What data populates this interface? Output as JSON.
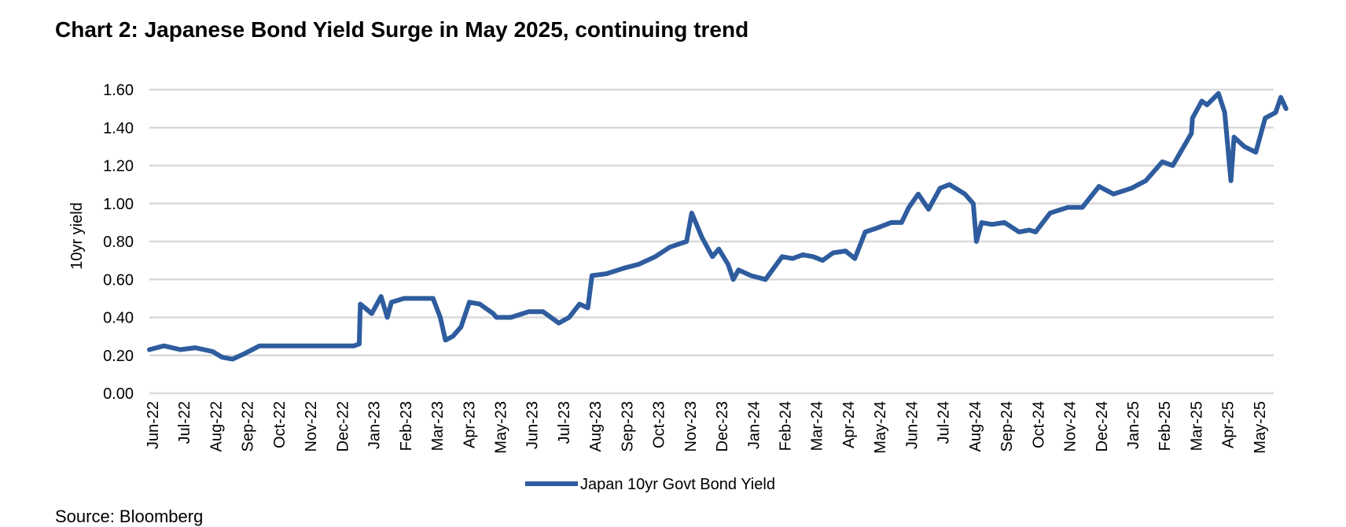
{
  "page": {
    "title": "Chart 2: Japanese Bond Yield Surge in May 2025, continuing trend",
    "footer": "Source: Bloomberg"
  },
  "chart_data": {
    "type": "line",
    "title": "Chart 2: Japanese Bond Yield Surge in May 2025, continuing trend",
    "xlabel": "",
    "ylabel": "10yr yield",
    "ylim": [
      0,
      1.6
    ],
    "yticks": [
      "0.00",
      "0.20",
      "0.40",
      "0.60",
      "0.80",
      "1.00",
      "1.20",
      "1.40",
      "1.60"
    ],
    "xticks": [
      "Jun-22",
      "Jul-22",
      "Aug-22",
      "Sep-22",
      "Oct-22",
      "Nov-22",
      "Dec-22",
      "Jan-23",
      "Feb-23",
      "Mar-23",
      "Apr-23",
      "May-23",
      "Jun-23",
      "Jul-23",
      "Aug-23",
      "Sep-23",
      "Oct-23",
      "Nov-23",
      "Dec-23",
      "Jan-24",
      "Feb-24",
      "Mar-24",
      "Apr-24",
      "May-24",
      "Jun-24",
      "Jul-24",
      "Aug-24",
      "Sep-24",
      "Oct-24",
      "Nov-24",
      "Dec-24",
      "Jan-25",
      "Feb-25",
      "Mar-25",
      "Apr-25",
      "May-25"
    ],
    "grid": true,
    "legend": "bottom",
    "colors": {
      "line": "#2E5C9E",
      "grid": "#d9d9d9"
    },
    "series": [
      {
        "name": "Japan 10yr Govt Bond Yield",
        "x": [
          "2022-06-01",
          "2022-06-15",
          "2022-07-01",
          "2022-07-15",
          "2022-08-01",
          "2022-08-10",
          "2022-08-20",
          "2022-09-01",
          "2022-09-15",
          "2022-10-01",
          "2022-10-15",
          "2022-11-01",
          "2022-11-15",
          "2022-12-01",
          "2022-12-15",
          "2022-12-20",
          "2022-12-21",
          "2023-01-01",
          "2023-01-10",
          "2023-01-16",
          "2023-01-20",
          "2023-02-01",
          "2023-02-15",
          "2023-03-01",
          "2023-03-08",
          "2023-03-13",
          "2023-03-20",
          "2023-03-28",
          "2023-04-05",
          "2023-04-15",
          "2023-04-28",
          "2023-05-01",
          "2023-05-15",
          "2023-06-01",
          "2023-06-15",
          "2023-06-30",
          "2023-07-10",
          "2023-07-20",
          "2023-07-28",
          "2023-08-01",
          "2023-08-15",
          "2023-09-01",
          "2023-09-15",
          "2023-10-01",
          "2023-10-15",
          "2023-10-31",
          "2023-11-05",
          "2023-11-15",
          "2023-11-25",
          "2023-12-01",
          "2023-12-10",
          "2023-12-15",
          "2023-12-20",
          "2024-01-01",
          "2024-01-15",
          "2024-01-31",
          "2024-02-10",
          "2024-02-20",
          "2024-03-01",
          "2024-03-10",
          "2024-03-20",
          "2024-04-01",
          "2024-04-10",
          "2024-04-20",
          "2024-05-01",
          "2024-05-15",
          "2024-05-25",
          "2024-06-01",
          "2024-06-10",
          "2024-06-20",
          "2024-07-01",
          "2024-07-10",
          "2024-07-25",
          "2024-08-02",
          "2024-08-05",
          "2024-08-10",
          "2024-08-20",
          "2024-09-01",
          "2024-09-15",
          "2024-09-25",
          "2024-10-01",
          "2024-10-15",
          "2024-11-01",
          "2024-11-15",
          "2024-12-01",
          "2024-12-15",
          "2025-01-01",
          "2025-01-15",
          "2025-01-31",
          "2025-02-10",
          "2025-02-28",
          "2025-03-01",
          "2025-03-10",
          "2025-03-15",
          "2025-03-26",
          "2025-04-01",
          "2025-04-07",
          "2025-04-10",
          "2025-04-20",
          "2025-05-01",
          "2025-05-10",
          "2025-05-20",
          "2025-05-25",
          "2025-05-30"
        ],
        "values": [
          0.23,
          0.25,
          0.23,
          0.24,
          0.22,
          0.19,
          0.18,
          0.21,
          0.25,
          0.25,
          0.25,
          0.25,
          0.25,
          0.25,
          0.25,
          0.26,
          0.47,
          0.42,
          0.51,
          0.4,
          0.48,
          0.5,
          0.5,
          0.5,
          0.4,
          0.28,
          0.3,
          0.35,
          0.48,
          0.47,
          0.42,
          0.4,
          0.4,
          0.43,
          0.43,
          0.37,
          0.4,
          0.47,
          0.45,
          0.62,
          0.63,
          0.66,
          0.68,
          0.72,
          0.77,
          0.8,
          0.95,
          0.82,
          0.72,
          0.76,
          0.68,
          0.6,
          0.65,
          0.62,
          0.6,
          0.72,
          0.71,
          0.73,
          0.72,
          0.7,
          0.74,
          0.75,
          0.71,
          0.85,
          0.87,
          0.9,
          0.9,
          0.98,
          1.05,
          0.97,
          1.08,
          1.1,
          1.05,
          1.0,
          0.8,
          0.9,
          0.89,
          0.9,
          0.85,
          0.86,
          0.85,
          0.95,
          0.98,
          0.98,
          1.09,
          1.05,
          1.08,
          1.12,
          1.22,
          1.2,
          1.37,
          1.45,
          1.54,
          1.52,
          1.58,
          1.48,
          1.12,
          1.35,
          1.3,
          1.27,
          1.45,
          1.48,
          1.56,
          1.5
        ]
      }
    ]
  }
}
